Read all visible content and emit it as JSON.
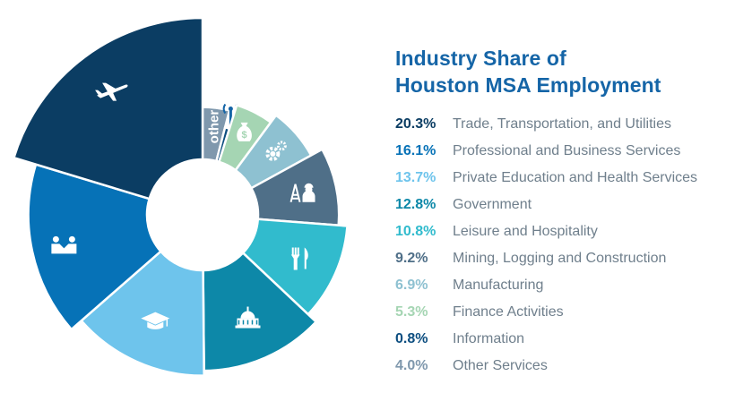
{
  "title": {
    "line1": "Industry Share of",
    "line2": "Houston MSA Employment",
    "color": "#1565a7"
  },
  "chart_data": {
    "type": "pie",
    "title": "Industry Share of Houston MSA Employment",
    "variant": "rose-donut",
    "start_angle_deg": 0,
    "direction": "clockwise",
    "slices": [
      {
        "category": "Other Services",
        "value": 4.0,
        "label": "4.0%",
        "color": "#7f98ad",
        "icon": "other-label",
        "icon_text": "other"
      },
      {
        "category": "Information",
        "value": 0.8,
        "label": "0.8%",
        "color": "#0c4e80",
        "icon": "antenna-icon"
      },
      {
        "category": "Finance Activities",
        "value": 5.3,
        "label": "5.3%",
        "color": "#a5d5b3",
        "icon": "money-bag-icon"
      },
      {
        "category": "Manufacturing",
        "value": 6.9,
        "label": "6.9%",
        "color": "#8ec1d1",
        "icon": "gears-icon"
      },
      {
        "category": "Mining, Logging and Construction",
        "value": 9.2,
        "label": "9.2%",
        "color": "#4f6f88",
        "icon": "oil-rig-worker-icon"
      },
      {
        "category": "Leisure and Hospitality",
        "value": 10.8,
        "label": "10.8%",
        "color": "#31bbcd",
        "icon": "fork-knife-icon"
      },
      {
        "category": "Government",
        "value": 12.8,
        "label": "12.8%",
        "color": "#0d88a8",
        "icon": "capitol-icon"
      },
      {
        "category": "Private Education and Health Services",
        "value": 13.7,
        "label": "13.7%",
        "color": "#6ec4ec",
        "icon": "graduation-cap-icon"
      },
      {
        "category": "Professional and Business Services",
        "value": 16.1,
        "label": "16.1%",
        "color": "#0672b7",
        "icon": "handshake-icon"
      },
      {
        "category": "Trade, Transportation, and Utilities",
        "value": 20.3,
        "label": "20.3%",
        "color": "#0b3d63",
        "icon": "airplane-icon"
      }
    ]
  },
  "legend": [
    {
      "pct": "20.3%",
      "label": "Trade, Transportation, and Utilities",
      "color": "#0b3d63"
    },
    {
      "pct": "16.1%",
      "label": "Professional and Business Services",
      "color": "#0672b7"
    },
    {
      "pct": "13.7%",
      "label": "Private Education and Health Services",
      "color": "#6ec4ec"
    },
    {
      "pct": "12.8%",
      "label": "Government",
      "color": "#0d88a8"
    },
    {
      "pct": "10.8%",
      "label": "Leisure and Hospitality",
      "color": "#31bbcd"
    },
    {
      "pct": "9.2%",
      "label": "Mining, Logging and Construction",
      "color": "#4f6f88"
    },
    {
      "pct": "6.9%",
      "label": "Manufacturing",
      "color": "#8ec1d1"
    },
    {
      "pct": "5.3%",
      "label": "Finance Activities",
      "color": "#a5d5b3"
    },
    {
      "pct": "0.8%",
      "label": "Information",
      "color": "#0c4e80"
    },
    {
      "pct": "4.0%",
      "label": "Other Services",
      "color": "#7f98ad"
    }
  ]
}
